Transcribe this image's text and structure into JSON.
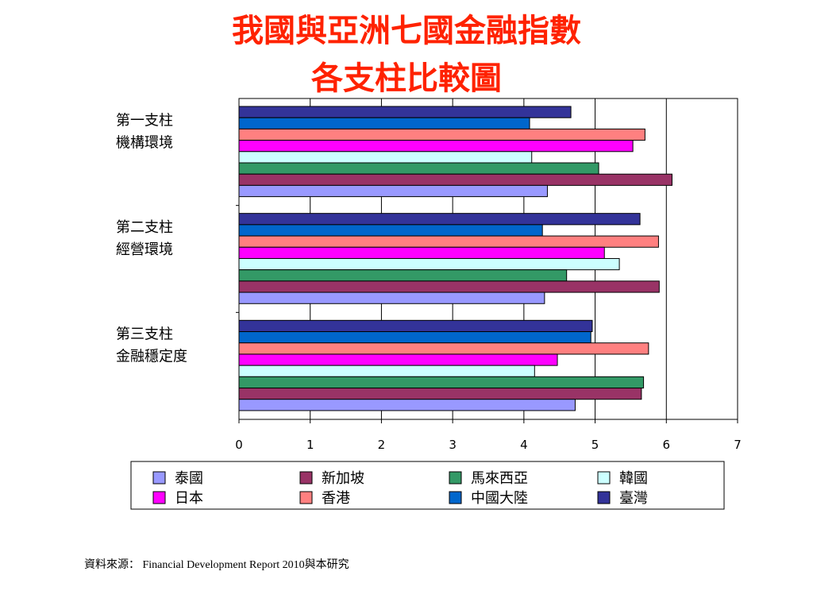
{
  "title_line1": "我國與亞洲七國金融指數",
  "title_line2": "各支柱比較圖",
  "source": "資料來源： Financial Development Report 2010與本研究",
  "chart_data": {
    "type": "bar",
    "orientation": "horizontal",
    "categories": [
      [
        "第一支柱",
        "機構環境"
      ],
      [
        "第二支柱",
        "經營環境"
      ],
      [
        "第三支柱",
        "金融穩定度"
      ]
    ],
    "xlim": [
      0,
      7
    ],
    "xticks": [
      "0",
      "1",
      "2",
      "3",
      "4",
      "5",
      "6",
      "7"
    ],
    "grid": "vertical",
    "legend_position": "bottom",
    "series": [
      {
        "name": "泰國",
        "color": "#9999ff",
        "values": [
          4.33,
          4.29,
          4.72
        ]
      },
      {
        "name": "新加坡",
        "color": "#993366",
        "values": [
          6.08,
          5.9,
          5.65
        ]
      },
      {
        "name": "馬來西亞",
        "color": "#339966",
        "values": [
          5.05,
          4.6,
          5.68
        ]
      },
      {
        "name": "韓國",
        "color": "#ccffff",
        "values": [
          4.11,
          5.34,
          4.15
        ]
      },
      {
        "name": "日本",
        "color": "#ff00ff",
        "values": [
          5.53,
          5.13,
          4.47
        ]
      },
      {
        "name": "香港",
        "color": "#ff8080",
        "values": [
          5.7,
          5.89,
          5.75
        ]
      },
      {
        "name": "中國大陸",
        "color": "#0066cc",
        "values": [
          4.08,
          4.26,
          4.94
        ]
      },
      {
        "name": "臺灣",
        "color": "#333399",
        "values": [
          4.66,
          5.63,
          4.96
        ]
      }
    ]
  }
}
